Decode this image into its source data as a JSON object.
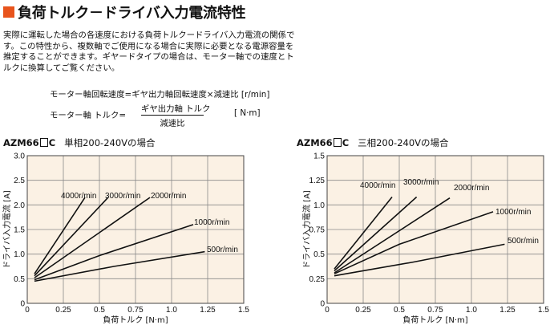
{
  "title": "負荷トルク－ドライバ入力電流特性",
  "accent_color": "#e8541c",
  "plot_background": "#fbf1e4",
  "grid_color": "#8a8a8a",
  "intro_text": "実際に運転した場合の各速度における負荷トルクードライバ入力電流の関係です。この特性から、複数軸でご使用になる場合に実際に必要となる電源容量を推定することができます。ギヤードタイプの場合は、モーター軸での速度とトルクに換算してご覧ください。",
  "formula_speed": "モーター軸回転速度=ギヤ出力軸回転速度×減速比 [r/min]",
  "formula_torque": {
    "lhs": "モーター軸 トルク=",
    "numerator": "ギヤ出力軸 トルク",
    "denominator": "減速比",
    "unit": "[ N·m]"
  },
  "chart_data": [
    {
      "type": "line",
      "title_model": "AZM66",
      "title_suffix": "C",
      "title_desc": "単相200-240Vの場合",
      "xlabel": "負荷トルク [N·m]",
      "ylabel": "ドライバ入力電流 [A]",
      "xlim": [
        0,
        1.5
      ],
      "ylim": [
        0,
        3.0
      ],
      "xticks": [
        "0",
        "0.25",
        "0.5",
        "0.75",
        "1.0",
        "1.25",
        "1.5"
      ],
      "yticks": [
        "0",
        "0.5",
        "1.0",
        "1.5",
        "2.0",
        "2.5",
        "3.0"
      ],
      "series": [
        {
          "name": "4000r/min",
          "points": [
            [
              0.05,
              0.6
            ],
            [
              0.4,
              2.15
            ]
          ]
        },
        {
          "name": "3000r/min",
          "points": [
            [
              0.05,
              0.56
            ],
            [
              0.56,
              2.15
            ]
          ]
        },
        {
          "name": "2000r/min",
          "points": [
            [
              0.05,
              0.52
            ],
            [
              0.85,
              2.15
            ]
          ]
        },
        {
          "name": "1000r/min",
          "points": [
            [
              0.05,
              0.48
            ],
            [
              0.5,
              0.97
            ],
            [
              1.15,
              1.6
            ]
          ]
        },
        {
          "name": "500r/min",
          "points": [
            [
              0.05,
              0.45
            ],
            [
              0.6,
              0.75
            ],
            [
              1.23,
              1.05
            ]
          ]
        }
      ]
    },
    {
      "type": "line",
      "title_model": "AZM66",
      "title_suffix": "C",
      "title_desc": "三相200-240Vの場合",
      "xlabel": "負荷トルク [N·m]",
      "ylabel": "ドライバ入力電流 [A]",
      "xlim": [
        0,
        1.5
      ],
      "ylim": [
        0,
        1.5
      ],
      "xticks": [
        "0",
        "0.25",
        "0.5",
        "0.75",
        "1.0",
        "1.25",
        "1.5"
      ],
      "yticks": [
        "0",
        "0.25",
        "0.5",
        "0.75",
        "1.0",
        "1.25",
        "1.5"
      ],
      "series": [
        {
          "name": "4000r/min",
          "points": [
            [
              0.05,
              0.35
            ],
            [
              0.45,
              1.08
            ]
          ]
        },
        {
          "name": "3000r/min",
          "points": [
            [
              0.05,
              0.33
            ],
            [
              0.62,
              1.08
            ]
          ]
        },
        {
          "name": "2000r/min",
          "points": [
            [
              0.05,
              0.31
            ],
            [
              0.85,
              1.07
            ]
          ]
        },
        {
          "name": "1000r/min",
          "points": [
            [
              0.05,
              0.3
            ],
            [
              0.5,
              0.6
            ],
            [
              1.15,
              0.93
            ]
          ]
        },
        {
          "name": "500r/min",
          "points": [
            [
              0.05,
              0.28
            ],
            [
              0.6,
              0.42
            ],
            [
              1.23,
              0.6
            ]
          ]
        }
      ]
    }
  ]
}
